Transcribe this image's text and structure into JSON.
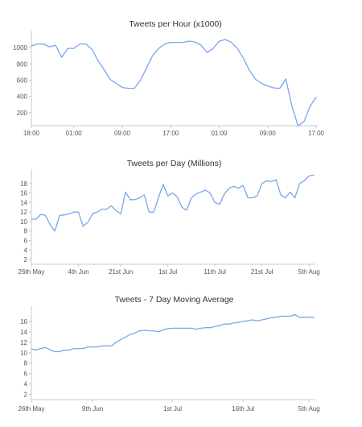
{
  "colors": {
    "line": "#7aa6ea",
    "axis": "#c8c8c8",
    "text": "#333333"
  },
  "chart_data": [
    {
      "type": "line",
      "title": "Tweets per Hour (x1000)",
      "xlabel": "",
      "ylabel": "",
      "grid": false,
      "ylim": [
        50,
        1150
      ],
      "yticks": [
        200,
        400,
        600,
        800,
        1000
      ],
      "xtick_labels": [
        "18:00",
        "01:00",
        "09:00",
        "17:00",
        "01:00",
        "09:00",
        "17:00"
      ],
      "xtick_positions": [
        0,
        7,
        15,
        23,
        31,
        39,
        47
      ],
      "x_count": 48,
      "values": [
        1020,
        1045,
        1045,
        1010,
        1030,
        880,
        990,
        990,
        1045,
        1045,
        980,
        840,
        730,
        610,
        560,
        510,
        500,
        500,
        600,
        750,
        900,
        990,
        1045,
        1065,
        1065,
        1065,
        1080,
        1070,
        1030,
        940,
        990,
        1080,
        1100,
        1065,
        990,
        870,
        720,
        610,
        560,
        530,
        505,
        500,
        615,
        280,
        40,
        90,
        280,
        390
      ]
    },
    {
      "type": "line",
      "title": "Tweets per Day (Millions)",
      "xlabel": "",
      "ylabel": "",
      "grid": false,
      "ylim": [
        1,
        20
      ],
      "yticks": [
        2,
        4,
        6,
        8,
        10,
        12,
        14,
        16,
        18
      ],
      "xtick_labels": [
        "26th May",
        "4th Jun",
        "21st Jun",
        "1st Jul",
        "11th Jul",
        "21st Jul",
        "5th Aug"
      ],
      "xtick_positions": [
        0,
        10,
        19,
        29,
        39,
        49,
        59
      ],
      "x_count": 61,
      "values": [
        10.5,
        10.5,
        11.5,
        11.3,
        9.3,
        8.0,
        11.3,
        11.4,
        11.6,
        12.0,
        12.0,
        9.0,
        9.8,
        11.6,
        12.0,
        12.6,
        12.6,
        13.3,
        12.3,
        11.6,
        16.2,
        14.6,
        14.6,
        15.0,
        15.6,
        12.0,
        12.0,
        15.0,
        17.8,
        15.4,
        16.0,
        15.2,
        13.0,
        12.4,
        15.0,
        15.8,
        16.2,
        16.6,
        16.0,
        14.0,
        13.6,
        15.8,
        17.0,
        17.4,
        17.0,
        17.6,
        15.0,
        15.0,
        15.4,
        18.0,
        18.6,
        18.4,
        18.8,
        15.6,
        15.0,
        16.2,
        15.0,
        18.0,
        18.6,
        19.6,
        19.8
      ]
    },
    {
      "type": "line",
      "title": "Tweets - 7 Day Moving Average",
      "xlabel": "",
      "ylabel": "",
      "grid": false,
      "ylim": [
        1,
        18
      ],
      "yticks": [
        2,
        4,
        6,
        8,
        10,
        12,
        14,
        16
      ],
      "xtick_labels": [
        "26th May",
        "9th Jun",
        "1st Jul",
        "16th Jul",
        "5th Aug"
      ],
      "xtick_positions": [
        0,
        13,
        30,
        45,
        59
      ],
      "x_count": 61,
      "values": [
        10.7,
        10.5,
        10.8,
        11.0,
        10.5,
        10.2,
        10.2,
        10.5,
        10.5,
        10.8,
        10.8,
        10.8,
        11.1,
        11.1,
        11.1,
        11.3,
        11.3,
        11.3,
        12.0,
        12.5,
        13.0,
        13.5,
        13.8,
        14.2,
        14.3,
        14.2,
        14.2,
        14.0,
        14.4,
        14.6,
        14.7,
        14.7,
        14.7,
        14.7,
        14.7,
        14.5,
        14.7,
        14.8,
        14.8,
        15.0,
        15.2,
        15.5,
        15.5,
        15.7,
        15.8,
        16.0,
        16.1,
        16.3,
        16.1,
        16.3,
        16.5,
        16.7,
        16.8,
        17.0,
        17.0,
        17.0,
        17.3,
        16.8,
        16.8,
        16.8,
        16.8
      ]
    }
  ]
}
